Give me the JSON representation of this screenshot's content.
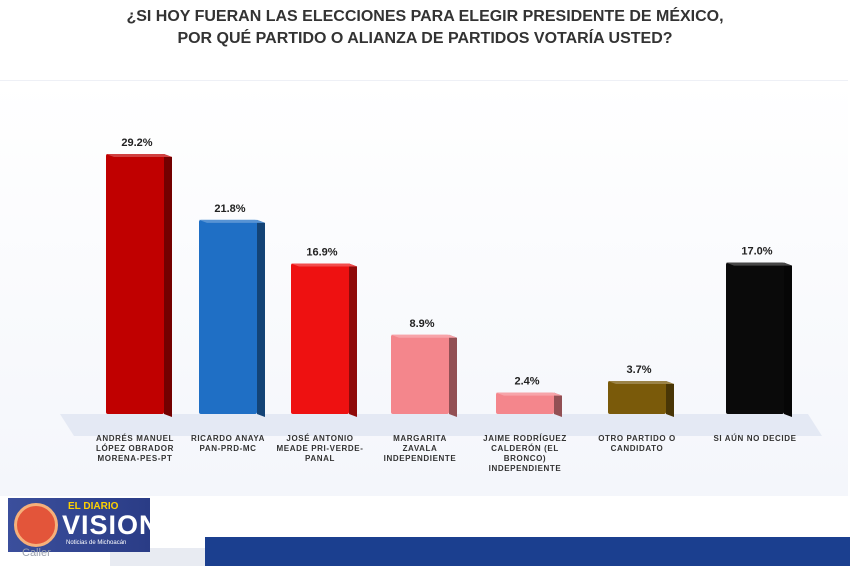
{
  "title": {
    "line1": "¿SI HOY FUERAN LAS ELECCIONES PARA ELEGIR PRESIDENTE DE MÉXICO,",
    "line2": "POR QUÉ  PARTIDO O ALIANZA DE PARTIDOS VOTARÍA USTED?"
  },
  "logo": {
    "small_text": "EL DIARIO",
    "big_text": "VISION",
    "tagline": "Noticias de Michoacán"
  },
  "source_text": "Caller",
  "chart_data": {
    "type": "bar",
    "title": "¿SI HOY FUERAN LAS ELECCIONES PARA ELEGIR PRESIDENTE DE MÉXICO, POR QUÉ  PARTIDO O ALIANZA DE PARTIDOS VOTARÍA USTED?",
    "xlabel": "",
    "ylabel": "",
    "ylim": [
      0,
      32
    ],
    "grid": false,
    "categories": [
      [
        "ANDRÉS MANUEL",
        "LÓPEZ OBRADOR",
        "MORENA-PES-PT"
      ],
      [
        "RICARDO ANAYA",
        "PAN-PRD-MC"
      ],
      [
        "JOSÉ ANTONIO",
        "MEADE  PRI-VERDE-",
        "PANAL"
      ],
      [
        "MARGARITA",
        "ZAVALA",
        "INDEPENDIENTE"
      ],
      [
        "JAIME RODRÍGUEZ",
        "CALDERÓN (EL",
        "BRONCO)",
        "INDEPENDIENTE"
      ],
      [
        "OTRO PARTIDO O",
        "CANDIDATO"
      ],
      [
        "SI AÚN NO DECIDE"
      ]
    ],
    "values": [
      29.2,
      21.8,
      16.9,
      8.9,
      2.4,
      3.7,
      17.0
    ],
    "value_labels": [
      "29.2%",
      "21.8%",
      "16.9%",
      "8.9%",
      "2.4%",
      "3.7%",
      "17.0%"
    ],
    "colors": [
      "#c00000",
      "#1f6fc5",
      "#ee1111",
      "#f4868c",
      "#f4868c",
      "#7a5a0a",
      "#0a0a0a"
    ]
  }
}
